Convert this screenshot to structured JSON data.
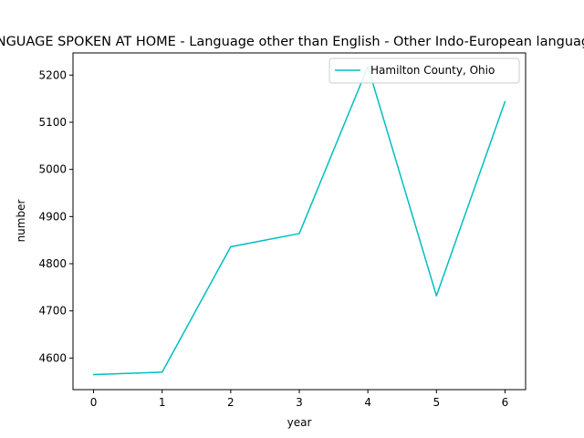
{
  "chart_data": {
    "type": "line",
    "title": "LANGUAGE SPOKEN AT HOME - Language other than English - Other Indo-European languages",
    "xlabel": "year",
    "ylabel": "number",
    "x": [
      0,
      1,
      2,
      3,
      4,
      5,
      6
    ],
    "xticks": [
      "0",
      "1",
      "2",
      "3",
      "4",
      "5",
      "6"
    ],
    "yticks": [
      "4600",
      "4700",
      "4800",
      "4900",
      "5000",
      "5100",
      "5200"
    ],
    "xlim": [
      -0.3,
      6.3
    ],
    "ylim": [
      4533,
      5247
    ],
    "grid": false,
    "legend_position": "top-right",
    "series": [
      {
        "name": "Hamilton County, Ohio",
        "color": "#00bfbf",
        "values": [
          4565,
          4570,
          4836,
          4864,
          5218,
          4732,
          5144
        ]
      }
    ]
  }
}
